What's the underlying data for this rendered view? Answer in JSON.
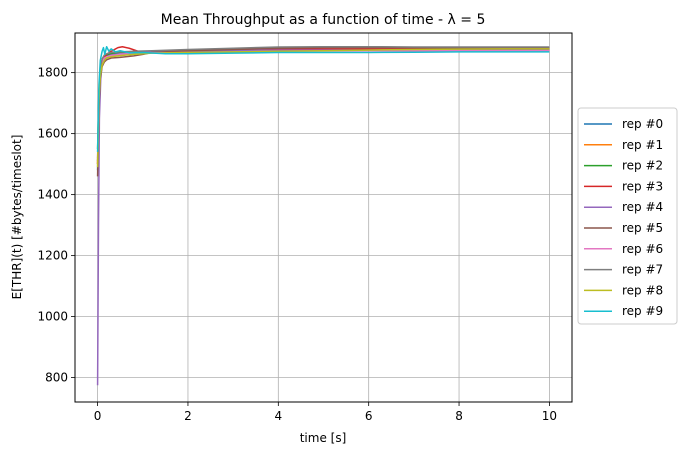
{
  "chart_data": {
    "type": "line",
    "title": "Mean Throughput as a function of time - λ = 5",
    "xlabel": "time [s]",
    "ylabel": "E[THR](t) [#bytes/timeslot]",
    "xlim": [
      -0.5,
      10.5
    ],
    "ylim": [
      720,
      1930
    ],
    "xticks": [
      0,
      2,
      4,
      6,
      8,
      10
    ],
    "xtick_labels": [
      "0",
      "2",
      "4",
      "6",
      "8",
      "10"
    ],
    "yticks": [
      800,
      1000,
      1200,
      1400,
      1600,
      1800
    ],
    "ytick_labels": [
      "800",
      "1000",
      "1200",
      "1400",
      "1600",
      "1800"
    ],
    "grid": true,
    "legend_position": "outside-right",
    "series": [
      {
        "name": "rep #0",
        "color": "#1f77b4",
        "x": [
          0,
          0.03,
          0.06,
          0.1,
          0.15,
          0.2,
          0.3,
          0.5,
          0.8,
          1.2,
          2,
          3,
          4,
          5,
          6,
          7,
          8,
          9,
          10
        ],
        "values": [
          1480,
          1720,
          1800,
          1840,
          1850,
          1855,
          1860,
          1862,
          1865,
          1868,
          1870,
          1872,
          1874,
          1876,
          1877,
          1878,
          1878,
          1878,
          1878
        ]
      },
      {
        "name": "rep #1",
        "color": "#ff7f0e",
        "x": [
          0,
          0.03,
          0.06,
          0.1,
          0.15,
          0.2,
          0.3,
          0.5,
          0.8,
          1.2,
          2,
          3,
          4,
          5,
          6,
          7,
          8,
          9,
          10
        ],
        "values": [
          1500,
          1700,
          1790,
          1830,
          1845,
          1850,
          1855,
          1858,
          1862,
          1866,
          1868,
          1870,
          1872,
          1874,
          1875,
          1876,
          1876,
          1876,
          1876
        ]
      },
      {
        "name": "rep #2",
        "color": "#2ca02c",
        "x": [
          0,
          0.03,
          0.06,
          0.1,
          0.15,
          0.2,
          0.3,
          0.5,
          0.8,
          1.2,
          2,
          3,
          4,
          5,
          6,
          7,
          8,
          9,
          10
        ],
        "values": [
          1550,
          1740,
          1810,
          1840,
          1850,
          1858,
          1862,
          1866,
          1868,
          1870,
          1874,
          1878,
          1882,
          1884,
          1884,
          1883,
          1882,
          1882,
          1882
        ]
      },
      {
        "name": "rep #3",
        "color": "#d62728",
        "x": [
          0,
          0.03,
          0.06,
          0.1,
          0.15,
          0.2,
          0.3,
          0.45,
          0.55,
          0.7,
          0.9,
          1.2,
          2,
          3,
          4,
          5,
          6,
          7,
          8,
          9,
          10
        ],
        "values": [
          1500,
          1720,
          1800,
          1835,
          1850,
          1860,
          1870,
          1882,
          1885,
          1880,
          1870,
          1868,
          1872,
          1876,
          1878,
          1878,
          1878,
          1878,
          1878,
          1878,
          1878
        ]
      },
      {
        "name": "rep #4",
        "color": "#9467bd",
        "x": [
          0,
          0.02,
          0.04,
          0.07,
          0.1,
          0.15,
          0.2,
          0.3,
          0.5,
          0.8,
          1.2,
          2,
          3,
          4,
          5,
          6,
          7,
          8,
          9,
          10
        ],
        "values": [
          775,
          1300,
          1650,
          1780,
          1830,
          1845,
          1852,
          1858,
          1862,
          1865,
          1868,
          1870,
          1872,
          1874,
          1874,
          1874,
          1874,
          1874,
          1874,
          1874
        ]
      },
      {
        "name": "rep #5",
        "color": "#8c564b",
        "x": [
          0,
          0.03,
          0.06,
          0.1,
          0.15,
          0.2,
          0.3,
          0.5,
          0.8,
          1.0,
          1.2,
          2,
          3,
          4,
          5,
          6,
          7,
          8,
          9,
          10
        ],
        "values": [
          1460,
          1690,
          1780,
          1820,
          1835,
          1842,
          1848,
          1850,
          1855,
          1860,
          1866,
          1872,
          1876,
          1880,
          1882,
          1882,
          1882,
          1881,
          1880,
          1880
        ]
      },
      {
        "name": "rep #6",
        "color": "#e377c2",
        "x": [
          0,
          0.03,
          0.06,
          0.1,
          0.15,
          0.2,
          0.3,
          0.5,
          0.8,
          1.2,
          2,
          3,
          4,
          5,
          6,
          7,
          8,
          9,
          10
        ],
        "values": [
          1520,
          1730,
          1805,
          1835,
          1848,
          1852,
          1856,
          1860,
          1863,
          1865,
          1866,
          1868,
          1870,
          1871,
          1872,
          1872,
          1872,
          1872,
          1872
        ]
      },
      {
        "name": "rep #7",
        "color": "#7f7f7f",
        "x": [
          0,
          0.03,
          0.06,
          0.1,
          0.15,
          0.2,
          0.3,
          0.5,
          0.8,
          1.2,
          2,
          3,
          4,
          5,
          6,
          7,
          8,
          9,
          10
        ],
        "values": [
          1510,
          1730,
          1810,
          1845,
          1858,
          1862,
          1866,
          1868,
          1870,
          1872,
          1876,
          1880,
          1884,
          1885,
          1885,
          1884,
          1884,
          1884,
          1884
        ]
      },
      {
        "name": "rep #8",
        "color": "#bcbd22",
        "x": [
          0,
          0.03,
          0.06,
          0.1,
          0.15,
          0.2,
          0.3,
          0.5,
          0.8,
          1.2,
          2,
          3,
          4,
          5,
          6,
          7,
          8,
          9,
          10
        ],
        "values": [
          1490,
          1710,
          1790,
          1825,
          1840,
          1848,
          1852,
          1856,
          1860,
          1864,
          1866,
          1868,
          1870,
          1872,
          1874,
          1876,
          1877,
          1878,
          1878
        ]
      },
      {
        "name": "rep #9",
        "color": "#17becf",
        "x": [
          0,
          0.03,
          0.06,
          0.1,
          0.13,
          0.16,
          0.2,
          0.25,
          0.3,
          0.4,
          0.5,
          0.7,
          1.0,
          1.5,
          2,
          3,
          4,
          5,
          6,
          7,
          8,
          9,
          10
        ],
        "values": [
          1540,
          1760,
          1840,
          1870,
          1882,
          1860,
          1885,
          1870,
          1878,
          1868,
          1872,
          1865,
          1866,
          1862,
          1862,
          1864,
          1866,
          1866,
          1866,
          1867,
          1868,
          1868,
          1868
        ]
      }
    ]
  }
}
